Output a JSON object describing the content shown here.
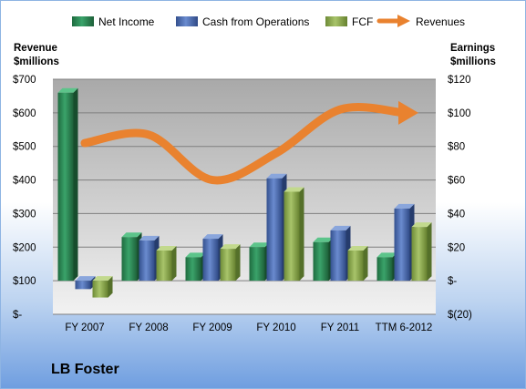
{
  "chart_data": {
    "type": "bar",
    "categories": [
      "FY 2007",
      "FY 2008",
      "FY 2009",
      "FY 2010",
      "FY 2011",
      "TTM 6-2012"
    ],
    "series": [
      {
        "name": "Net Income",
        "axis": "right",
        "values": [
          112,
          26,
          14,
          20,
          23,
          14
        ],
        "color": "#2e8b57"
      },
      {
        "name": "Cash from Operations",
        "axis": "right",
        "values": [
          -5,
          24,
          25,
          61,
          30,
          43
        ],
        "color": "#4f6fb2"
      },
      {
        "name": "FCF",
        "axis": "right",
        "values": [
          -10,
          18,
          19,
          53,
          18,
          32
        ],
        "color": "#8fad4f"
      },
      {
        "name": "Revenues",
        "axis": "left",
        "type": "line",
        "values": [
          510,
          535,
          400,
          480,
          610,
          600
        ],
        "color": "#e9822f"
      }
    ],
    "left_axis": {
      "title_line1": "Revenue",
      "title_line2": "$millions",
      "ylim": [
        0,
        700
      ],
      "ticks": [
        "$700",
        "$600",
        "$500",
        "$400",
        "$300",
        "$200",
        "$100",
        "$-"
      ]
    },
    "right_axis": {
      "title_line1": "Earnings",
      "title_line2": "$millions",
      "ylim": [
        -20,
        120
      ],
      "ticks": [
        "$120",
        "$100",
        "$80",
        "$60",
        "$40",
        "$20",
        "$-",
        "$(20)"
      ]
    },
    "legend_position": "top",
    "grid": true
  },
  "company_name": "LB Foster"
}
